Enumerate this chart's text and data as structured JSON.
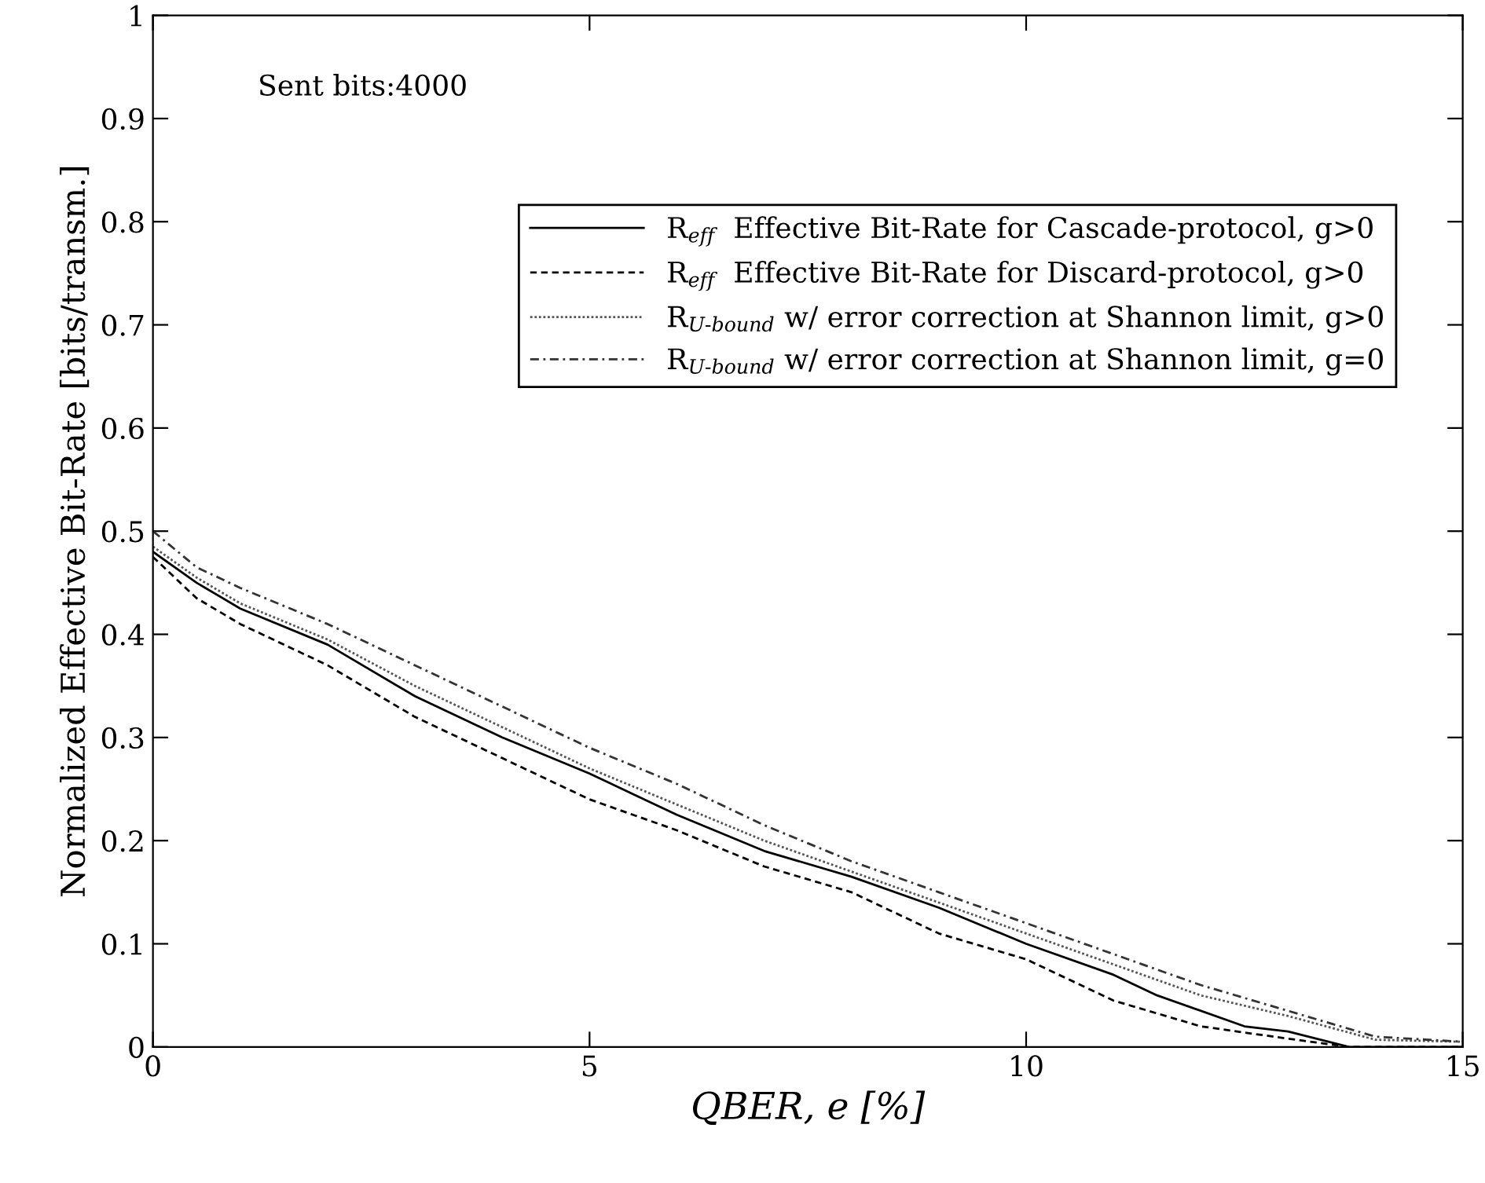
{
  "chart_data": {
    "type": "line",
    "xlabel": "QBER, e [%]",
    "ylabel": "Normalized Effective Bit-Rate [bits/transm.]",
    "xlim": [
      0,
      15
    ],
    "ylim": [
      0,
      1
    ],
    "xticks": [
      0,
      5,
      10,
      15
    ],
    "yticks": [
      0,
      0.1,
      0.2,
      0.3,
      0.4,
      0.5,
      0.6,
      0.7,
      0.8,
      0.9,
      1
    ],
    "grid": false,
    "legend": "top right",
    "marker": "none",
    "annotations": [
      "Sent bits:4000"
    ],
    "series": [
      {
        "name": "R$_{eff}$  Effective Bit-Rate for Cascade-protocol, g>0",
        "color": "#000000",
        "line_style": "solid",
        "x": [
          0,
          0.5,
          1,
          2,
          3,
          4,
          5,
          6,
          7,
          8,
          9,
          10,
          11,
          11.5,
          12.5,
          13,
          13.7,
          15
        ],
        "values": [
          0.48,
          0.45,
          0.425,
          0.39,
          0.34,
          0.3,
          0.265,
          0.225,
          0.19,
          0.165,
          0.135,
          0.1,
          0.07,
          0.05,
          0.02,
          0.015,
          0,
          0
        ]
      },
      {
        "name": "R$_{eff}$  Effective Bit-Rate for Discard-protocol, g>0",
        "color": "#000000",
        "line_style": "dashed",
        "x": [
          0,
          0.5,
          1,
          2,
          3,
          4,
          5,
          6,
          7,
          8,
          9,
          10,
          11,
          12,
          13,
          13.7,
          15
        ],
        "values": [
          0.475,
          0.435,
          0.41,
          0.37,
          0.32,
          0.28,
          0.24,
          0.21,
          0.175,
          0.15,
          0.11,
          0.085,
          0.045,
          0.02,
          0.008,
          0,
          0
        ]
      },
      {
        "name": "R$_{U-bound}$ w/ error correction at Shannon limit, g>0",
        "color": "#555555",
        "line_style": "dotted",
        "x": [
          0,
          0.5,
          1,
          2,
          3,
          4,
          5,
          6,
          7,
          8,
          9,
          10,
          11,
          12,
          13,
          14,
          15
        ],
        "values": [
          0.485,
          0.455,
          0.43,
          0.395,
          0.35,
          0.31,
          0.27,
          0.235,
          0.2,
          0.17,
          0.14,
          0.11,
          0.08,
          0.05,
          0.03,
          0.007,
          0.005
        ]
      },
      {
        "name": "R$_{U-bound}$ w/ error correction at Shannon limit, g=0",
        "color": "#333333",
        "line_style": "dashdot",
        "x": [
          0,
          0.5,
          1,
          2,
          3,
          4,
          5,
          6,
          7,
          8,
          9,
          10,
          11,
          12,
          13,
          14,
          15
        ],
        "values": [
          0.5,
          0.465,
          0.445,
          0.41,
          0.37,
          0.33,
          0.29,
          0.255,
          0.215,
          0.18,
          0.15,
          0.12,
          0.09,
          0.06,
          0.035,
          0.01,
          0.005
        ]
      }
    ]
  }
}
